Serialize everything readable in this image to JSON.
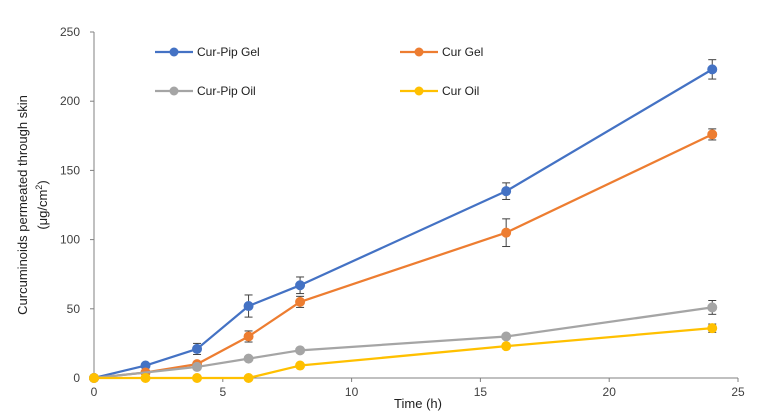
{
  "chart_data": {
    "type": "line",
    "title": "",
    "xlabel": "Time (h)",
    "ylabel_line1": "Curcuminoids  permeated through skin",
    "ylabel_line2_prefix": "(μg/cm",
    "ylabel_line2_sup": "2",
    "ylabel_line2_suffix": ")",
    "xlim": [
      0,
      25
    ],
    "ylim": [
      0,
      250
    ],
    "xticks": [
      "0",
      "5",
      "10",
      "15",
      "20",
      "25"
    ],
    "yticks": [
      "0",
      "50",
      "100",
      "150",
      "200",
      "250"
    ],
    "grid": false,
    "legend_placement": "top-left",
    "series": [
      {
        "name": "Cur-Pip Gel",
        "color": "#4472C4",
        "x": [
          0,
          2,
          4,
          6,
          8,
          16,
          24
        ],
        "y": [
          0,
          9,
          21,
          52,
          67,
          135,
          223
        ],
        "err": [
          0,
          0,
          4,
          8,
          6,
          6,
          7
        ]
      },
      {
        "name": "Cur Gel",
        "color": "#ED7D31",
        "x": [
          0,
          2,
          4,
          6,
          8,
          16,
          24
        ],
        "y": [
          0,
          4,
          10,
          30,
          55,
          105,
          176
        ],
        "err": [
          0,
          0,
          0,
          4,
          4,
          10,
          4
        ]
      },
      {
        "name": "Cur-Pip Oil",
        "color": "#A5A5A5",
        "x": [
          0,
          4,
          6,
          8,
          16,
          24
        ],
        "y": [
          0,
          8,
          14,
          20,
          30,
          51
        ],
        "err": [
          0,
          0,
          0,
          0,
          0,
          5
        ]
      },
      {
        "name": "Cur Oil",
        "color": "#FFC000",
        "x": [
          0,
          2,
          4,
          6,
          8,
          16,
          24
        ],
        "y": [
          0,
          0,
          0,
          0,
          9,
          23,
          36
        ],
        "err": [
          0,
          0,
          0,
          0,
          0,
          0,
          3
        ]
      }
    ]
  }
}
